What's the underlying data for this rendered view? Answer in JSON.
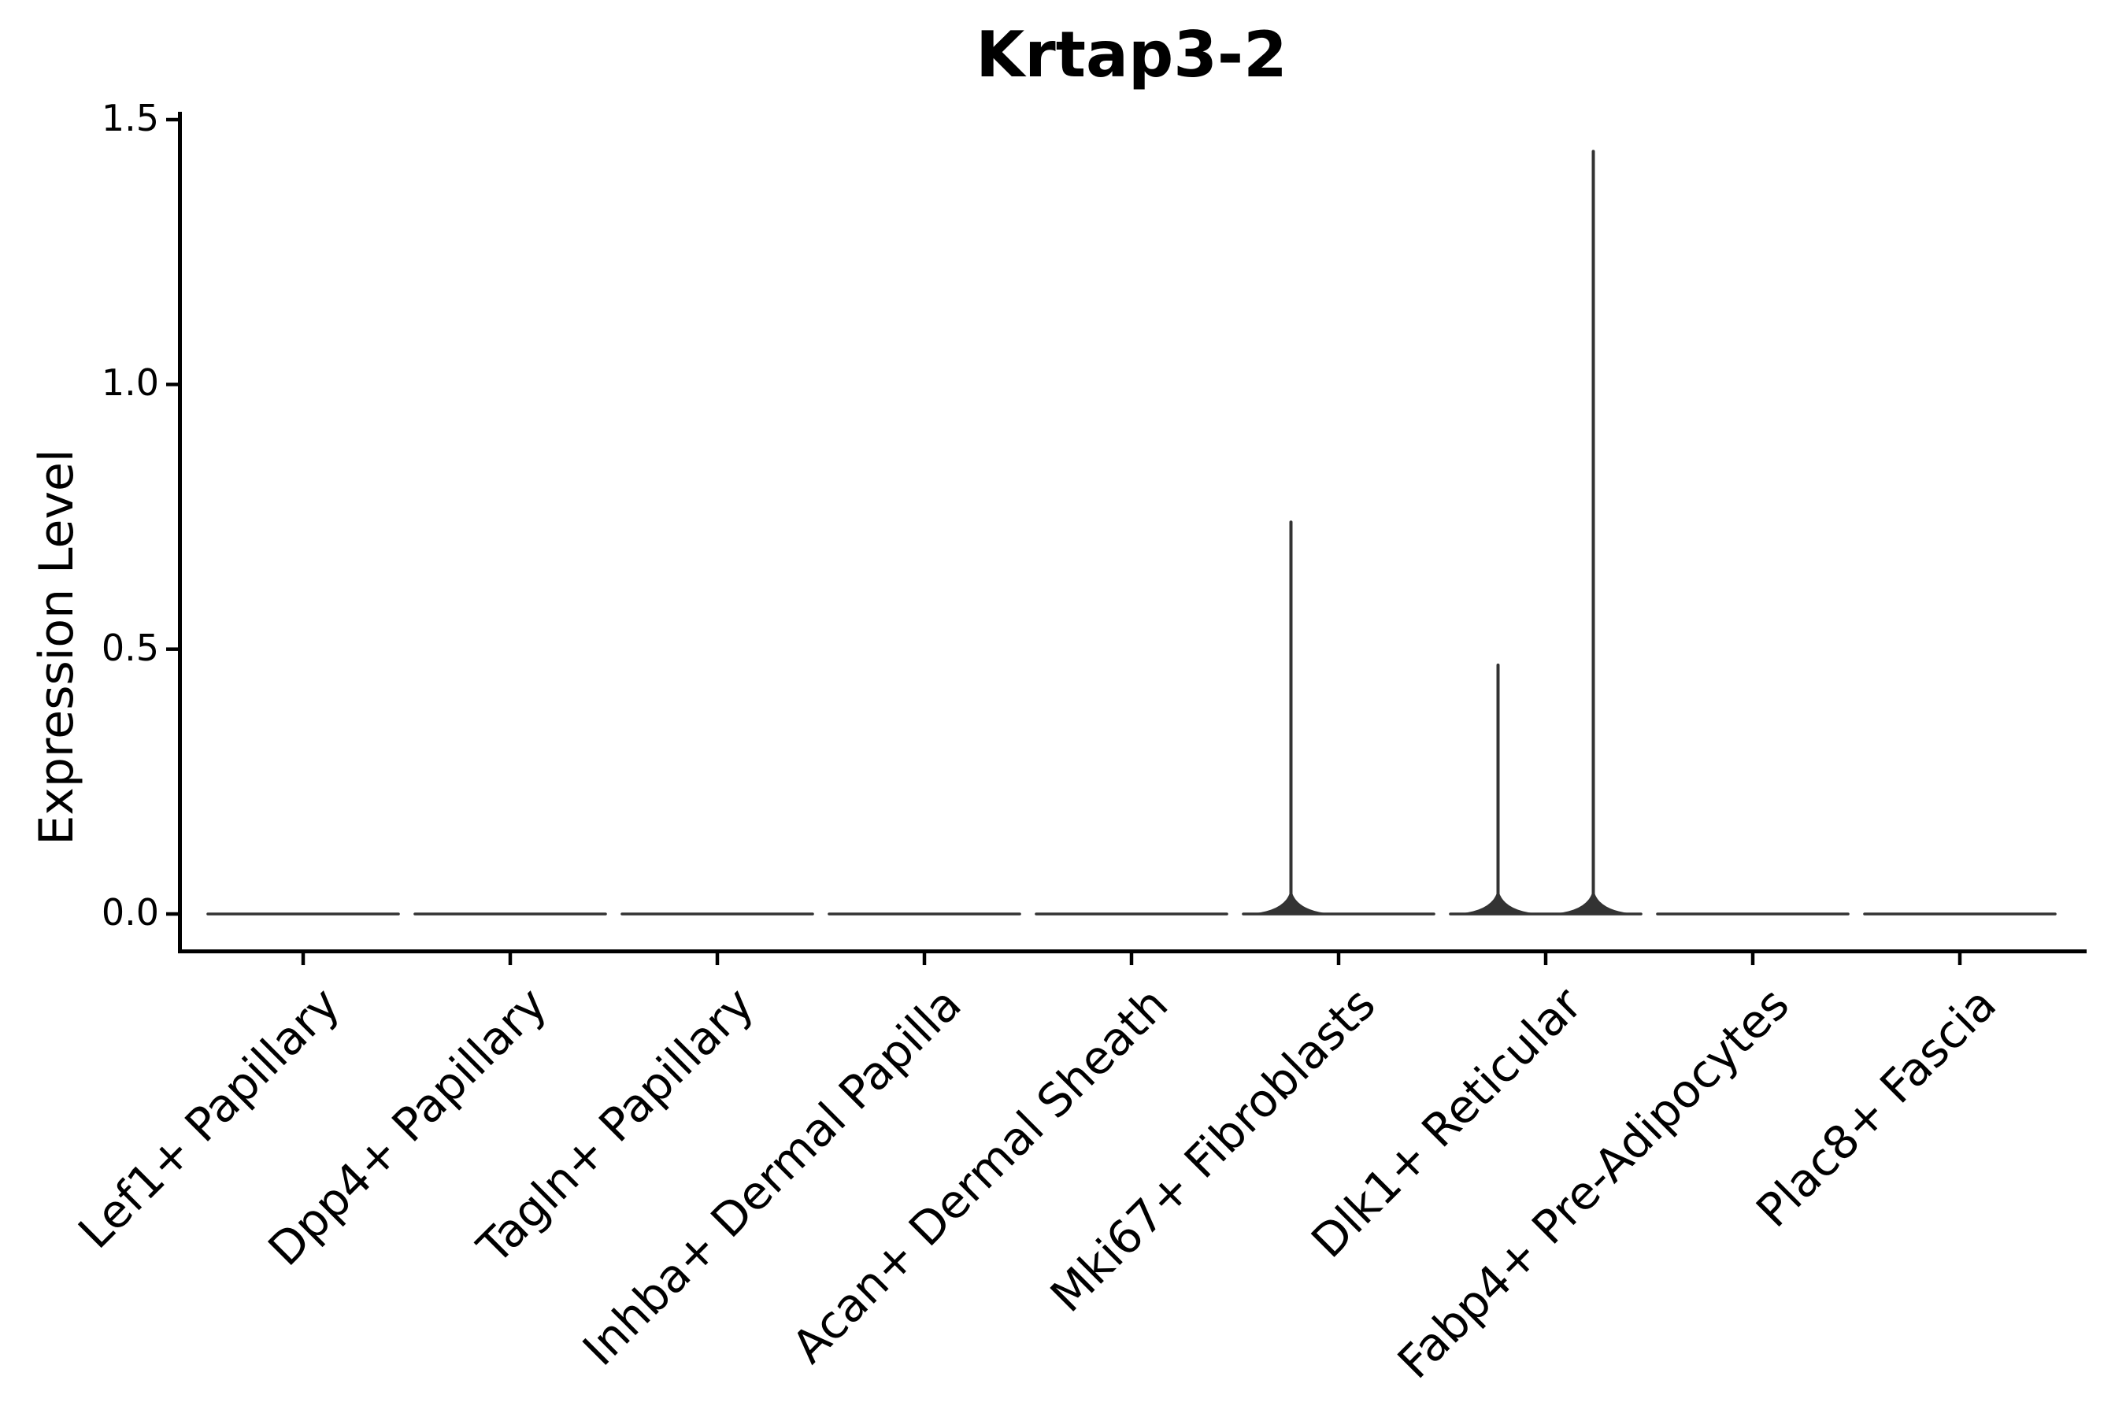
{
  "chart_data": {
    "type": "violin",
    "title": "Krtap3-2",
    "xlabel": "",
    "ylabel": "Expression Level",
    "ylim": [
      0,
      1.5
    ],
    "grid": false,
    "legend": "none",
    "yticks": [
      {
        "value": 0.0,
        "label": "0.0"
      },
      {
        "value": 0.5,
        "label": "0.5"
      },
      {
        "value": 1.0,
        "label": "1.0"
      },
      {
        "value": 1.5,
        "label": "1.5"
      }
    ],
    "categories": [
      "Lef1+ Papillary",
      "Dpp4+ Papillary",
      "Tagln+ Papillary",
      "Inhba+ Dermal Papilla",
      "Acan+ Dermal Sheath",
      "Mki67+ Fibroblasts",
      "Dlk1+ Reticular",
      "Fabp4+ Pre-Adipocytes",
      "Plac8+ Fascia"
    ],
    "violins": [
      {
        "label": "Lef1+ Papillary",
        "baseline_value": 0,
        "spikes": []
      },
      {
        "label": "Dpp4+ Papillary",
        "baseline_value": 0,
        "spikes": []
      },
      {
        "label": "Tagln+ Papillary",
        "baseline_value": 0,
        "spikes": []
      },
      {
        "label": "Inhba+ Dermal Papilla",
        "baseline_value": 0,
        "spikes": []
      },
      {
        "label": "Acan+ Dermal Sheath",
        "baseline_value": 0,
        "spikes": []
      },
      {
        "label": "Mki67+ Fibroblasts",
        "baseline_value": 0,
        "spikes": [
          {
            "position_frac": -0.25,
            "value": 0.74
          }
        ]
      },
      {
        "label": "Dlk1+ Reticular",
        "baseline_value": 0,
        "spikes": [
          {
            "position_frac": -0.25,
            "value": 0.47
          },
          {
            "position_frac": 0.25,
            "value": 1.44
          }
        ]
      },
      {
        "label": "Fabp4+ Pre-Adipocytes",
        "baseline_value": 0,
        "spikes": []
      },
      {
        "label": "Plac8+ Fascia",
        "baseline_value": 0,
        "spikes": []
      }
    ],
    "colors": {
      "violin": "#333333",
      "axis": "#000000",
      "text": "#000000",
      "background": "#ffffff"
    }
  }
}
